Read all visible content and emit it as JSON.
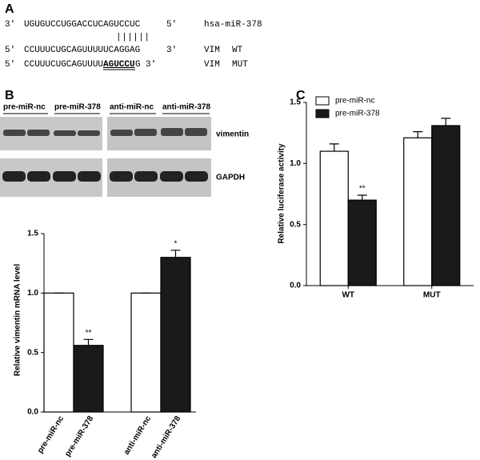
{
  "panels": {
    "a": "A",
    "b": "B",
    "c": "C"
  },
  "sequences": {
    "mirna": {
      "start": "3'",
      "seq": "UGUGUCCUGGACCUCAGUCCUC",
      "end": "5'",
      "label": "hsa-miR-378"
    },
    "pairing": "||||||",
    "wt": {
      "start": "5'",
      "seq": "CCUUUCUGCAGUUUUUCAGGAG",
      "end": "3'",
      "gene": "VIM",
      "label": "WT"
    },
    "mut": {
      "start": "5'",
      "seq": [
        "CCUUUCUGCAGUUUU",
        "AGUCCU",
        "G"
      ],
      "end": "3'",
      "gene": "VIM",
      "label": "MUT"
    }
  },
  "blot": {
    "groups": [
      "pre-miR-nc",
      "pre-miR-378",
      "anti-miR-nc",
      "anti-miR-378"
    ],
    "bands": [
      "vimentin",
      "GAPDH"
    ]
  },
  "chart_data": [
    {
      "type": "bar",
      "ylabel": "Relative vimentin mRNA level",
      "categories": [
        "pre-miR-nc",
        "pre-miR-378",
        "anti-miR-nc",
        "anti-miR-378"
      ],
      "values": [
        1.0,
        0.56,
        1.0,
        1.3
      ],
      "errors": [
        0,
        0.05,
        0,
        0.06
      ],
      "colors": [
        "#ffffff",
        "#1a1a1a",
        "#ffffff",
        "#1a1a1a"
      ],
      "significance": [
        null,
        "**",
        null,
        "*"
      ],
      "ylim": [
        0,
        1.5
      ],
      "yticks": [
        {
          "value": 0,
          "label": "0.0"
        },
        {
          "value": 0.5,
          "label": "0.5"
        },
        {
          "value": 1,
          "label": "1.0"
        },
        {
          "value": 1.5,
          "label": "1.5"
        }
      ]
    },
    {
      "type": "grouped_bar",
      "ylabel": "Relative luciferase  activity",
      "categories": [
        "WT",
        "MUT"
      ],
      "series": [
        {
          "name": "pre-miR-nc",
          "color": "#ffffff",
          "values": [
            1.1,
            1.21
          ],
          "errors": [
            0.06,
            0.05
          ],
          "significance": [
            null,
            null
          ]
        },
        {
          "name": "pre-miR-378",
          "color": "#1a1a1a",
          "values": [
            0.7,
            1.31
          ],
          "errors": [
            0.04,
            0.06
          ],
          "significance": [
            "**",
            null
          ]
        }
      ],
      "ylim": [
        0,
        1.5
      ],
      "yticks": [
        {
          "value": 0,
          "label": "0.0"
        },
        {
          "value": 0.5,
          "label": "0.5"
        },
        {
          "value": 1,
          "label": "1.0"
        },
        {
          "value": 1.5,
          "label": "1.5"
        }
      ],
      "legend": "top-left"
    }
  ]
}
